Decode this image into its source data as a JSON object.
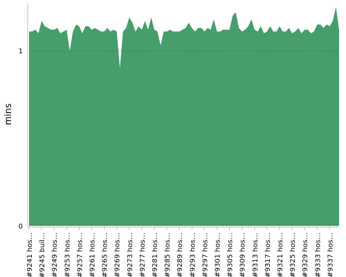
{
  "chart_data": {
    "type": "area",
    "y_label": "mins",
    "color": "#459e6b",
    "categories": [
      "#9241 hos…",
      null,
      null,
      null,
      "#9245 buil…",
      null,
      null,
      null,
      "#9249 hos…",
      null,
      null,
      null,
      "#9253 hos…",
      null,
      null,
      null,
      "#9257 hos…",
      null,
      null,
      null,
      "#9261 hos…",
      null,
      null,
      null,
      "#9265 hos…",
      null,
      null,
      null,
      "#9269 hos…",
      null,
      null,
      null,
      "#9273 hos…",
      null,
      null,
      null,
      "#9277 hos…",
      null,
      null,
      null,
      "#9281 hos…",
      null,
      null,
      null,
      "#9285 hos…",
      null,
      null,
      null,
      "#9289 hos…",
      null,
      null,
      null,
      "#9293 hos…",
      null,
      null,
      null,
      "#9297 hos…",
      null,
      null,
      null,
      "#9301 hos…",
      null,
      null,
      null,
      "#9305 hos…",
      null,
      null,
      null,
      "#9309 hos…",
      null,
      null,
      null,
      "#9313 hos…",
      null,
      null,
      null,
      "#9317 hos…",
      null,
      null,
      null,
      "#9321 hos…",
      null,
      null,
      null,
      "#9325 hos…",
      null,
      null,
      null,
      "#9329 hos…",
      null,
      null,
      null,
      "#9333 hos…",
      null,
      null,
      null,
      "#9337 hos…",
      null,
      null,
      null
    ],
    "values": [
      1.11,
      1.11,
      1.12,
      1.1,
      1.17,
      1.14,
      1.13,
      1.12,
      1.12,
      1.13,
      1.1,
      1.11,
      1.12,
      1.0,
      1.11,
      1.15,
      1.14,
      1.1,
      1.14,
      1.14,
      1.12,
      1.13,
      1.12,
      1.11,
      1.11,
      1.13,
      1.11,
      1.12,
      1.11,
      0.9,
      1.11,
      1.13,
      1.19,
      1.16,
      1.11,
      1.14,
      1.12,
      1.17,
      1.12,
      1.19,
      1.12,
      1.11,
      1.03,
      1.11,
      1.11,
      1.12,
      1.11,
      1.11,
      1.11,
      1.12,
      1.13,
      1.16,
      1.13,
      1.11,
      1.13,
      1.13,
      1.11,
      1.13,
      1.12,
      1.18,
      1.11,
      1.11,
      1.12,
      1.12,
      1.12,
      1.2,
      1.22,
      1.13,
      1.11,
      1.12,
      1.14,
      1.18,
      1.12,
      1.11,
      1.14,
      1.1,
      1.11,
      1.14,
      1.11,
      1.11,
      1.14,
      1.11,
      1.11,
      1.13,
      1.1,
      1.11,
      1.13,
      1.1,
      1.12,
      1.12,
      1.1,
      1.11,
      1.15,
      1.15,
      1.13,
      1.15,
      1.14,
      1.17,
      1.25,
      1.12
    ],
    "ylim": [
      0,
      1.27
    ],
    "yticks": [
      0,
      1
    ],
    "grid": true
  }
}
